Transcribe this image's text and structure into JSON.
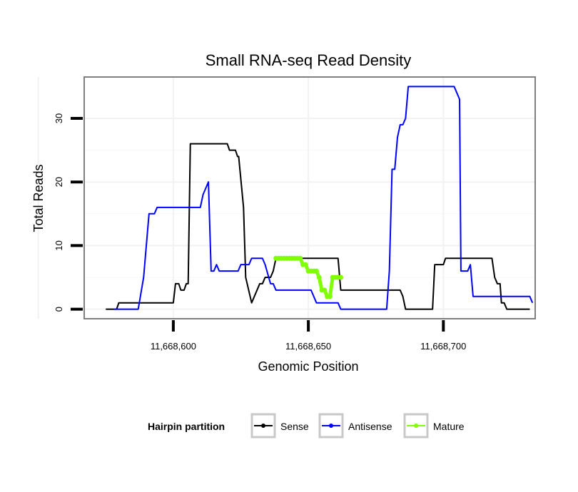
{
  "chart_data": {
    "type": "line",
    "title": "Small RNA-seq Read Density",
    "xlabel": "Genomic Position",
    "ylabel": "Total Reads",
    "xlim": [
      11668567,
      11668734
    ],
    "ylim": [
      -1.5,
      36.5
    ],
    "x_ticks": [
      {
        "value": 11668600,
        "label": "11,668,600"
      },
      {
        "value": 11668650,
        "label": "11,668,650"
      },
      {
        "value": 11668700,
        "label": "11,668,700"
      }
    ],
    "y_ticks": [
      {
        "value": 0,
        "label": "0"
      },
      {
        "value": 10,
        "label": "10"
      },
      {
        "value": 20,
        "label": "20"
      },
      {
        "value": 30,
        "label": "30"
      }
    ],
    "grid": true,
    "legend": {
      "title": "Hairpin partition",
      "position": "bottom",
      "items": [
        {
          "label": "Sense",
          "color": "#000000"
        },
        {
          "label": "Antisense",
          "color": "#0000ff"
        },
        {
          "label": "Mature",
          "color": "#7fff00"
        }
      ]
    },
    "series": [
      {
        "name": "Sense",
        "color": "#000000",
        "points": [
          [
            11668575,
            0
          ],
          [
            11668579,
            0
          ],
          [
            11668579.8,
            1
          ],
          [
            11668600,
            1
          ],
          [
            11668600.8,
            4
          ],
          [
            11668602,
            4
          ],
          [
            11668602.8,
            3
          ],
          [
            11668604,
            3
          ],
          [
            11668604.8,
            4
          ],
          [
            11668605.5,
            4
          ],
          [
            11668606.3,
            26
          ],
          [
            11668620,
            26
          ],
          [
            11668620.8,
            25
          ],
          [
            11668623,
            25
          ],
          [
            11668623.8,
            24
          ],
          [
            11668624.2,
            24
          ],
          [
            11668626,
            16
          ],
          [
            11668626.8,
            5
          ],
          [
            11668629,
            1
          ],
          [
            11668632,
            4
          ],
          [
            11668633,
            4
          ],
          [
            11668634,
            5
          ],
          [
            11668636,
            5
          ],
          [
            11668637,
            6
          ],
          [
            11668638,
            8
          ],
          [
            11668661,
            8
          ],
          [
            11668662,
            3
          ],
          [
            11668684,
            3
          ],
          [
            11668685,
            2
          ],
          [
            11668686,
            0
          ],
          [
            11668696,
            0
          ],
          [
            11668696.8,
            7
          ],
          [
            11668700,
            7
          ],
          [
            11668700.8,
            8
          ],
          [
            11668718,
            8
          ],
          [
            11668719,
            5
          ],
          [
            11668720,
            4
          ],
          [
            11668721,
            4
          ],
          [
            11668721.5,
            1
          ],
          [
            11668722.5,
            1
          ],
          [
            11668723.5,
            0
          ],
          [
            11668732,
            0
          ]
        ]
      },
      {
        "name": "Antisense",
        "color": "#0000ff",
        "points": [
          [
            11668578,
            0
          ],
          [
            11668587,
            0
          ],
          [
            11668589,
            5
          ],
          [
            11668591,
            15
          ],
          [
            11668593,
            15
          ],
          [
            11668594,
            16
          ],
          [
            11668610,
            16
          ],
          [
            11668611,
            18
          ],
          [
            11668613,
            20
          ],
          [
            11668614,
            6
          ],
          [
            11668615,
            6
          ],
          [
            11668616,
            7
          ],
          [
            11668617,
            6
          ],
          [
            11668624,
            6
          ],
          [
            11668625,
            7
          ],
          [
            11668628,
            7
          ],
          [
            11668629,
            8
          ],
          [
            11668633,
            8
          ],
          [
            11668634,
            7
          ],
          [
            11668636,
            4
          ],
          [
            11668637,
            4
          ],
          [
            11668638,
            3
          ],
          [
            11668651,
            3
          ],
          [
            11668652,
            2
          ],
          [
            11668653,
            1
          ],
          [
            11668661,
            1
          ],
          [
            11668662,
            0
          ],
          [
            11668679,
            0
          ],
          [
            11668680,
            6
          ],
          [
            11668681,
            22
          ],
          [
            11668682,
            22
          ],
          [
            11668683,
            27
          ],
          [
            11668684,
            29
          ],
          [
            11668685,
            29
          ],
          [
            11668686,
            30
          ],
          [
            11668687,
            35
          ],
          [
            11668704,
            35
          ],
          [
            11668706,
            33
          ],
          [
            11668706.5,
            6
          ],
          [
            11668709,
            6
          ],
          [
            11668710,
            7
          ],
          [
            11668711,
            2
          ],
          [
            11668732,
            2
          ],
          [
            11668733,
            1
          ]
        ]
      },
      {
        "name": "Mature",
        "color": "#7fff00",
        "points": [
          [
            11668638,
            8
          ],
          [
            11668639,
            8
          ],
          [
            11668640,
            8
          ],
          [
            11668641,
            8
          ],
          [
            11668642,
            8
          ],
          [
            11668643,
            8
          ],
          [
            11668644,
            8
          ],
          [
            11668645,
            8
          ],
          [
            11668646,
            8
          ],
          [
            11668647,
            8
          ],
          [
            11668648,
            7
          ],
          [
            11668649,
            7
          ],
          [
            11668650,
            6
          ],
          [
            11668651,
            6
          ],
          [
            11668652,
            6
          ],
          [
            11668653,
            6
          ],
          [
            11668654,
            5
          ],
          [
            11668655,
            3
          ],
          [
            11668656,
            3
          ],
          [
            11668657,
            2
          ],
          [
            11668658,
            2
          ],
          [
            11668659,
            5
          ],
          [
            11668660,
            5
          ],
          [
            11668661,
            5
          ],
          [
            11668662,
            5
          ]
        ]
      }
    ]
  }
}
